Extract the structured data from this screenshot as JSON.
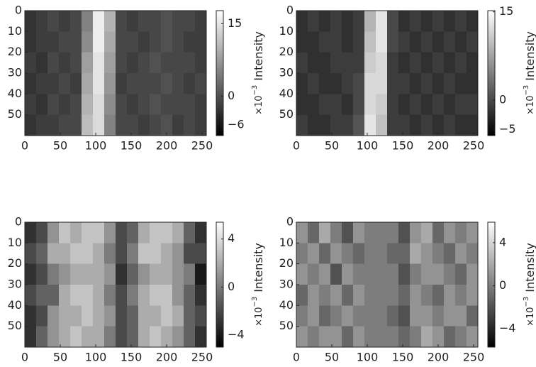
{
  "chart_data": [
    {
      "type": "heatmap",
      "colormap": "gray",
      "yaxis_inverted": true,
      "xlim": [
        0,
        256
      ],
      "ylim": [
        0,
        60
      ],
      "xticks": [
        0,
        50,
        100,
        150,
        200,
        250
      ],
      "yticks": [
        0,
        10,
        20,
        30,
        40,
        50
      ],
      "zlim": [
        -8.2,
        17.7
      ],
      "zticks": [
        {
          "value": -6,
          "label": "−6"
        },
        0,
        15
      ],
      "colorbar_multiplier": {
        "base": "×10",
        "exponent": "−3"
      },
      "colorbar_label": "Intensity",
      "z": [
        [
          -3,
          -2,
          -1,
          -2,
          -1,
          5,
          16,
          10,
          -1,
          -2,
          -1,
          -1,
          0,
          -1,
          -1,
          -2
        ],
        [
          -3,
          -2,
          -2,
          -1,
          -1,
          6,
          16,
          9,
          -1,
          -1,
          -2,
          -1,
          0,
          -1,
          -2,
          -2
        ],
        [
          -2,
          -3,
          -1,
          -2,
          -1,
          8,
          15,
          8,
          -1,
          -2,
          -1,
          0,
          -1,
          -1,
          -1,
          -2
        ],
        [
          -3,
          -2,
          -2,
          -1,
          -2,
          9,
          15,
          7,
          -2,
          -1,
          -1,
          -1,
          0,
          -1,
          -2,
          -1
        ],
        [
          -2,
          -3,
          -1,
          -2,
          -1,
          10,
          14,
          6,
          -1,
          -2,
          -1,
          0,
          -1,
          -1,
          -1,
          -2
        ],
        [
          -3,
          -2,
          -2,
          -1,
          -1,
          11,
          14,
          5,
          -1,
          -1,
          -2,
          -1,
          0,
          -2,
          -1,
          -2
        ]
      ]
    },
    {
      "type": "heatmap",
      "colormap": "gray",
      "yaxis_inverted": true,
      "xlim": [
        0,
        256
      ],
      "ylim": [
        0,
        60
      ],
      "xticks": [
        0,
        50,
        100,
        150,
        200,
        250
      ],
      "yticks": [
        0,
        10,
        20,
        30,
        40,
        50
      ],
      "zlim": [
        -6,
        15.2
      ],
      "zticks": [
        {
          "value": -5,
          "label": "−5"
        },
        0,
        15
      ],
      "colorbar_multiplier": {
        "base": "×10",
        "exponent": "−3"
      },
      "colorbar_label": "Intensity",
      "z": [
        [
          -2,
          -1,
          -2,
          -1,
          -2,
          -1,
          9,
          13,
          0,
          -2,
          -1,
          -2,
          -1,
          -2,
          -1,
          -2
        ],
        [
          -2,
          -2,
          -1,
          -1,
          -2,
          -1,
          10,
          13,
          0,
          -1,
          -2,
          -1,
          -2,
          -1,
          -2,
          -1
        ],
        [
          -1,
          -2,
          -2,
          -1,
          -1,
          -1,
          11,
          12,
          -1,
          -2,
          -1,
          -2,
          -1,
          -2,
          -1,
          -2
        ],
        [
          -2,
          -1,
          -2,
          -2,
          -1,
          0,
          12,
          12,
          -1,
          -1,
          -2,
          -1,
          -2,
          -1,
          -2,
          -2
        ],
        [
          -2,
          -2,
          -1,
          -1,
          -2,
          0,
          12,
          11,
          -1,
          -2,
          -1,
          -2,
          -1,
          -2,
          -1,
          -1
        ],
        [
          -1,
          -2,
          -2,
          -1,
          -1,
          1,
          13,
          10,
          -1,
          -1,
          -2,
          -1,
          -2,
          -1,
          -2,
          -2
        ]
      ]
    },
    {
      "type": "heatmap",
      "colormap": "gray",
      "yaxis_inverted": true,
      "xlim": [
        0,
        256
      ],
      "ylim": [
        0,
        60
      ],
      "xticks": [
        0,
        50,
        100,
        150,
        200,
        250
      ],
      "yticks": [
        0,
        10,
        20,
        30,
        40,
        50
      ],
      "zlim": [
        -5,
        5.4
      ],
      "zticks": [
        {
          "value": -4,
          "label": "−4"
        },
        0,
        4
      ],
      "colorbar_multiplier": {
        "base": "×10",
        "exponent": "−3"
      },
      "colorbar_label": "Intensity",
      "z": [
        [
          -3,
          -2,
          1,
          3,
          2,
          3,
          3,
          1,
          -2,
          -1,
          2,
          3,
          3,
          2,
          -1,
          -3
        ],
        [
          -2,
          -1,
          2,
          2,
          3,
          3,
          2,
          0,
          -2,
          0,
          3,
          3,
          2,
          1,
          -2,
          -2
        ],
        [
          -3,
          -2,
          0,
          1,
          2,
          2,
          2,
          1,
          -3,
          -1,
          1,
          2,
          2,
          1,
          0,
          -4
        ],
        [
          -2,
          -1,
          -1,
          2,
          3,
          3,
          2,
          0,
          -2,
          0,
          2,
          3,
          3,
          1,
          -1,
          -3
        ],
        [
          -3,
          -2,
          1,
          2,
          2,
          3,
          2,
          1,
          -2,
          -1,
          2,
          2,
          3,
          2,
          -1,
          -2
        ],
        [
          -3,
          -1,
          1,
          2,
          3,
          2,
          2,
          0,
          -2,
          -1,
          2,
          3,
          2,
          1,
          -1,
          -3
        ]
      ]
    },
    {
      "type": "heatmap",
      "colormap": "gray",
      "yaxis_inverted": true,
      "xlim": [
        0,
        256
      ],
      "ylim": [
        0,
        60
      ],
      "xticks": [
        0,
        50,
        100,
        150,
        200,
        250
      ],
      "yticks": [
        0,
        10,
        20,
        30,
        40,
        50
      ],
      "zlim": [
        -5.7,
        5.9
      ],
      "zticks": [
        {
          "value": -4,
          "label": "−4"
        },
        0,
        4
      ],
      "colorbar_multiplier": {
        "base": "×10",
        "exponent": "−3"
      },
      "colorbar_label": "Intensity",
      "z": [
        [
          1,
          -1,
          2,
          0,
          -2,
          1,
          0,
          0,
          0,
          -2,
          1,
          2,
          -1,
          1,
          0,
          1
        ],
        [
          0,
          1,
          -1,
          1,
          0,
          -1,
          0,
          0,
          -1,
          -1,
          2,
          1,
          0,
          -1,
          1,
          0
        ],
        [
          1,
          0,
          1,
          -2,
          1,
          0,
          0,
          0,
          0,
          -2,
          0,
          1,
          1,
          0,
          -1,
          1
        ],
        [
          -1,
          1,
          0,
          1,
          -1,
          1,
          0,
          0,
          0,
          -1,
          1,
          0,
          -1,
          1,
          0,
          1
        ],
        [
          0,
          1,
          -1,
          0,
          1,
          0,
          0,
          0,
          -1,
          -2,
          1,
          1,
          0,
          1,
          1,
          -1
        ],
        [
          1,
          0,
          1,
          1,
          -1,
          1,
          0,
          0,
          0,
          -1,
          0,
          2,
          1,
          -1,
          0,
          1
        ]
      ]
    }
  ]
}
